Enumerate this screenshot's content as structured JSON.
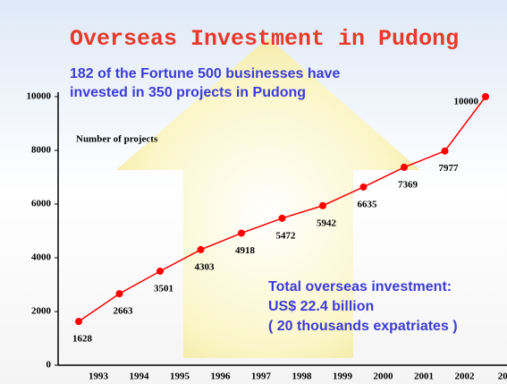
{
  "chart_data": {
    "type": "line",
    "title": "Overseas Investment in Pudong",
    "subtitle": [
      "182 of the Fortune 500 businesses have",
      "invested in 350 projects in Pudong"
    ],
    "y_label": "Number of projects",
    "annotation": [
      "Total overseas investment:",
      "US$ 22.4 billion",
      "( 20 thousands expatriates )"
    ],
    "categories": [
      "1993",
      "1994",
      "1995",
      "1996",
      "1997",
      "1998",
      "1999",
      "2000",
      "2001",
      "2002",
      "200"
    ],
    "values": [
      1628,
      2663,
      3501,
      4303,
      4918,
      5472,
      5942,
      6635,
      7369,
      7977,
      10000
    ],
    "color": "#ff0000",
    "ylim": [
      0,
      10000
    ],
    "yticks": [
      0,
      2000,
      4000,
      6000,
      8000,
      10000
    ]
  }
}
